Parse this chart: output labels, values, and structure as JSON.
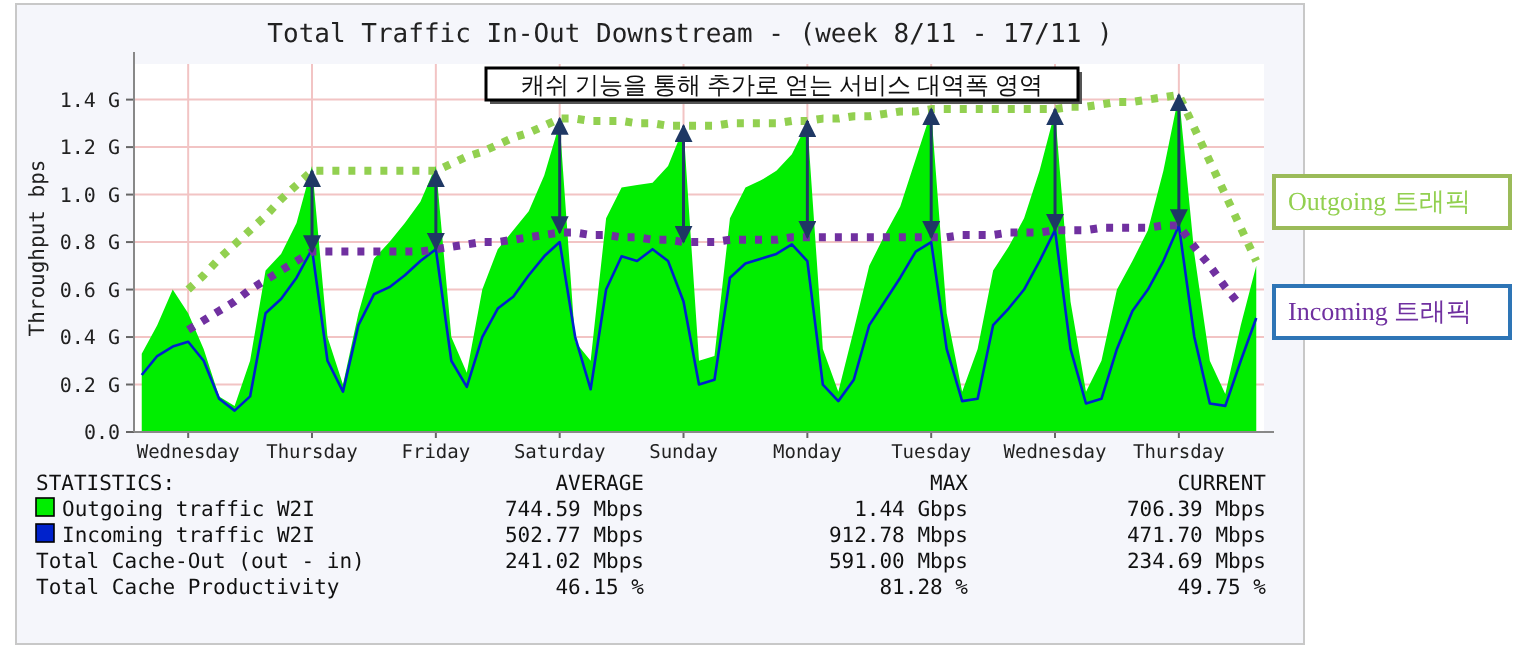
{
  "chart_data": {
    "type": "area",
    "title": "Total Traffic In-Out Downstream - (week 8/11 - 17/11 )",
    "ylabel": "Throughput bps",
    "categories": [
      null,
      null,
      null,
      "Wednesday",
      null,
      null,
      null,
      null,
      null,
      null,
      null,
      "Thursday",
      null,
      null,
      null,
      null,
      null,
      null,
      null,
      "Friday",
      null,
      null,
      null,
      null,
      null,
      null,
      null,
      "Saturday",
      null,
      null,
      null,
      null,
      null,
      null,
      null,
      "Sunday",
      null,
      null,
      null,
      null,
      null,
      null,
      null,
      "Monday",
      null,
      null,
      null,
      null,
      null,
      null,
      null,
      "Tuesday",
      null,
      null,
      null,
      null,
      null,
      null,
      null,
      "Wednesday",
      null,
      null,
      null,
      null,
      null,
      null,
      null,
      "Thursday",
      null,
      null,
      null,
      null,
      null
    ],
    "ylim": [
      0,
      1.55
    ],
    "yticks": [
      {
        "value": 0,
        "label": "0.0"
      },
      {
        "value": 0.2,
        "label": "0.2 G"
      },
      {
        "value": 0.4,
        "label": "0.4 G"
      },
      {
        "value": 0.6,
        "label": "0.6 G"
      },
      {
        "value": 0.8,
        "label": "0.8 G"
      },
      {
        "value": 1.0,
        "label": "1.0 G"
      },
      {
        "value": 1.2,
        "label": "1.2 G"
      },
      {
        "value": 1.4,
        "label": "1.4 G"
      }
    ],
    "grid": true,
    "legend": "bottom",
    "series": [
      {
        "name": "Outgoing traffic W2I",
        "color": "#00ee00",
        "values": [
          0.33,
          0.45,
          0.6,
          0.5,
          0.35,
          0.15,
          0.11,
          0.3,
          0.68,
          0.75,
          0.88,
          1.12,
          0.4,
          0.2,
          0.5,
          0.73,
          0.8,
          0.88,
          0.97,
          1.12,
          0.4,
          0.25,
          0.6,
          0.77,
          0.85,
          0.93,
          1.08,
          1.3,
          0.38,
          0.3,
          0.9,
          1.03,
          1.04,
          1.05,
          1.12,
          1.28,
          0.3,
          0.32,
          0.9,
          1.03,
          1.06,
          1.1,
          1.17,
          1.3,
          0.35,
          0.17,
          0.43,
          0.7,
          0.83,
          0.95,
          1.15,
          1.35,
          0.5,
          0.17,
          0.35,
          0.68,
          0.78,
          0.9,
          1.1,
          1.35,
          0.55,
          0.17,
          0.3,
          0.6,
          0.72,
          0.85,
          1.1,
          1.42,
          0.75,
          0.3,
          0.16,
          0.45,
          0.7
        ]
      },
      {
        "name": "Incoming traffic W2I",
        "type": "line",
        "color": "#0022cc",
        "values": [
          0.24,
          0.32,
          0.36,
          0.38,
          0.3,
          0.14,
          0.09,
          0.15,
          0.5,
          0.56,
          0.65,
          0.77,
          0.3,
          0.17,
          0.45,
          0.58,
          0.61,
          0.66,
          0.72,
          0.77,
          0.3,
          0.19,
          0.4,
          0.52,
          0.57,
          0.66,
          0.74,
          0.8,
          0.4,
          0.18,
          0.6,
          0.74,
          0.72,
          0.77,
          0.72,
          0.55,
          0.2,
          0.22,
          0.65,
          0.71,
          0.73,
          0.75,
          0.79,
          0.72,
          0.2,
          0.13,
          0.22,
          0.45,
          0.55,
          0.65,
          0.76,
          0.8,
          0.35,
          0.13,
          0.14,
          0.45,
          0.52,
          0.6,
          0.72,
          0.85,
          0.35,
          0.12,
          0.14,
          0.35,
          0.51,
          0.6,
          0.72,
          0.87,
          0.4,
          0.12,
          0.11,
          0.3,
          0.48
        ]
      },
      {
        "name": "Outgoing 트래픽",
        "type": "line",
        "line_style": "dotted",
        "color": "#92d050",
        "values": [
          null,
          null,
          null,
          0.6,
          0.66,
          0.73,
          0.79,
          0.85,
          0.91,
          0.98,
          1.04,
          1.1,
          1.1,
          1.1,
          1.1,
          1.1,
          1.1,
          1.1,
          1.1,
          1.1,
          1.13,
          1.16,
          1.18,
          1.21,
          1.24,
          1.26,
          1.29,
          1.32,
          1.32,
          1.31,
          1.31,
          1.31,
          1.3,
          1.3,
          1.29,
          1.29,
          1.29,
          1.29,
          1.3,
          1.3,
          1.3,
          1.3,
          1.31,
          1.31,
          1.32,
          1.32,
          1.33,
          1.33,
          1.34,
          1.35,
          1.35,
          1.36,
          1.36,
          1.36,
          1.36,
          1.36,
          1.36,
          1.36,
          1.36,
          1.36,
          1.37,
          1.37,
          1.38,
          1.39,
          1.39,
          1.4,
          1.41,
          1.42,
          1.28,
          1.14,
          1.0,
          0.86,
          0.72
        ]
      },
      {
        "name": "Incoming 트래픽",
        "type": "line",
        "line_style": "dotted",
        "color": "#7030a0",
        "values": [
          null,
          null,
          null,
          0.43,
          0.47,
          0.51,
          0.55,
          0.6,
          0.64,
          0.68,
          0.72,
          0.76,
          0.76,
          0.76,
          0.76,
          0.76,
          0.76,
          0.76,
          0.76,
          0.77,
          0.78,
          0.79,
          0.8,
          0.8,
          0.81,
          0.82,
          0.83,
          0.84,
          0.84,
          0.83,
          0.83,
          0.82,
          0.82,
          0.81,
          0.81,
          0.8,
          0.8,
          0.8,
          0.81,
          0.81,
          0.81,
          0.81,
          0.82,
          0.82,
          0.82,
          0.82,
          0.82,
          0.82,
          0.82,
          0.82,
          0.82,
          0.82,
          0.82,
          0.83,
          0.83,
          0.83,
          0.84,
          0.84,
          0.84,
          0.85,
          0.85,
          0.85,
          0.86,
          0.86,
          0.86,
          0.86,
          0.87,
          0.87,
          0.78,
          0.7,
          0.61,
          0.53,
          null
        ]
      }
    ],
    "annotations": [
      "캐쉬 기능을 통해 추가로 얻는 서비스 대역폭 영역",
      "STATISTICS:",
      "AVERAGE",
      "MAX",
      "CURRENT",
      "744.59 Mbps",
      "1.44 Gbps",
      "706.39 Mbps",
      "502.77 Mbps",
      "912.78 Mbps",
      "471.70 Mbps",
      "Total Cache-Out (out - in)",
      "241.02 Mbps",
      "591.00 Mbps",
      "234.69 Mbps",
      "Total Cache Productivity",
      "46.15 %",
      "81.28 %",
      "49.75 %"
    ]
  }
}
